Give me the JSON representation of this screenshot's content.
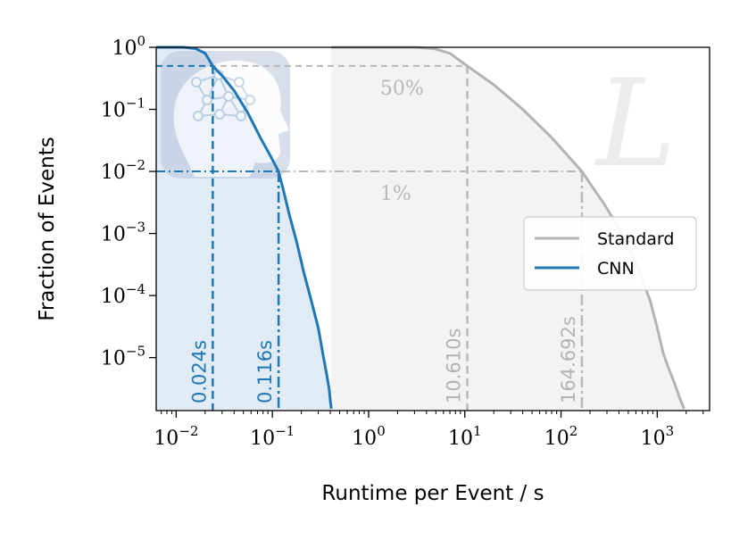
{
  "chart_data": {
    "type": "line",
    "xlabel": "Runtime per Event / s",
    "ylabel": "Fraction of Events",
    "xscale": "log",
    "yscale": "log",
    "xlim": [
      0.0062,
      3500
    ],
    "ylim": [
      1.4e-06,
      1.0
    ],
    "x_ticks": [
      {
        "value": 0.01,
        "base": "10",
        "exp": "−2"
      },
      {
        "value": 0.1,
        "base": "10",
        "exp": "−1"
      },
      {
        "value": 1,
        "base": "10",
        "exp": "0"
      },
      {
        "value": 10,
        "base": "10",
        "exp": "1"
      },
      {
        "value": 100,
        "base": "10",
        "exp": "2"
      },
      {
        "value": 1000,
        "base": "10",
        "exp": "3"
      }
    ],
    "y_ticks": [
      {
        "value": 1,
        "base": "10",
        "exp": "0"
      },
      {
        "value": 0.1,
        "base": "10",
        "exp": "−1"
      },
      {
        "value": 0.01,
        "base": "10",
        "exp": "−2"
      },
      {
        "value": 0.001,
        "base": "10",
        "exp": "−3"
      },
      {
        "value": 0.0001,
        "base": "10",
        "exp": "−4"
      },
      {
        "value": 1e-05,
        "base": "10",
        "exp": "−5"
      }
    ],
    "series": [
      {
        "name": "Standard",
        "color": "#b3b3b3",
        "x": [
          0.41,
          3.0,
          4.8,
          7.0,
          10.6,
          20,
          40,
          80,
          164.7,
          280,
          450,
          650,
          850,
          1000,
          1150,
          1300,
          1500,
          1700,
          1900
        ],
        "y": [
          1.0,
          1.0,
          0.95,
          0.8,
          0.5,
          0.25,
          0.1,
          0.035,
          0.01,
          0.003,
          0.0009,
          0.00025,
          8e-05,
          3e-05,
          1.2e-05,
          7e-06,
          4e-06,
          2.3e-06,
          1.5e-06
        ]
      },
      {
        "name": "CNN",
        "color": "#1f77b4",
        "x": [
          0.0062,
          0.012,
          0.016,
          0.02,
          0.024,
          0.03,
          0.04,
          0.055,
          0.075,
          0.095,
          0.116,
          0.13,
          0.15,
          0.18,
          0.21,
          0.25,
          0.3,
          0.34,
          0.37,
          0.39,
          0.4,
          0.41
        ],
        "y": [
          1.0,
          1.0,
          0.95,
          0.8,
          0.5,
          0.35,
          0.2,
          0.09,
          0.035,
          0.018,
          0.01,
          0.005,
          0.002,
          0.0007,
          0.00025,
          9e-05,
          3e-05,
          1e-05,
          5e-06,
          3e-06,
          2e-06,
          1.5e-06
        ]
      }
    ],
    "thresholds": [
      {
        "label": "50%",
        "fraction": 0.5
      },
      {
        "label": "1%",
        "fraction": 0.01
      }
    ],
    "markers": [
      {
        "series": "CNN",
        "fraction": 0.5,
        "x": 0.024,
        "label": "0.024s",
        "style": "dashed"
      },
      {
        "series": "CNN",
        "fraction": 0.01,
        "x": 0.116,
        "label": "0.116s",
        "style": "dashdot"
      },
      {
        "series": "Standard",
        "fraction": 0.5,
        "x": 10.61,
        "label": "10.610s",
        "style": "dashed"
      },
      {
        "series": "Standard",
        "fraction": 0.01,
        "x": 164.692,
        "label": "164.692s",
        "style": "dashdot"
      }
    ],
    "legend": {
      "position": "right",
      "entries": [
        "Standard",
        "CNN"
      ]
    },
    "grid": false,
    "watermark": "L"
  }
}
